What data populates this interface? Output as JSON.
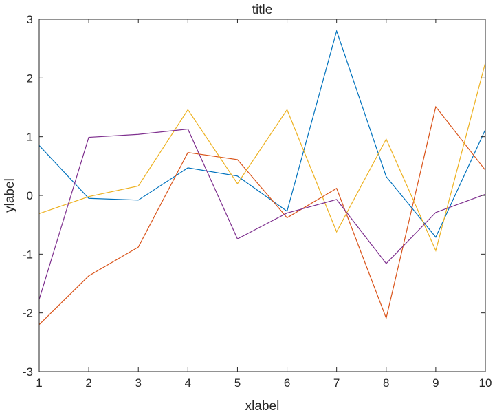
{
  "chart_data": {
    "type": "line",
    "title": "title",
    "xlabel": "xlabel",
    "ylabel": "ylabel",
    "xlim": [
      1,
      10
    ],
    "ylim": [
      -3,
      3
    ],
    "xticks": [
      1,
      2,
      3,
      4,
      5,
      6,
      7,
      8,
      9,
      10
    ],
    "yticks": [
      -3,
      -2,
      -1,
      0,
      1,
      2,
      3
    ],
    "grid": false,
    "x": [
      1,
      2,
      3,
      4,
      5,
      6,
      7,
      8,
      9,
      10
    ],
    "series": [
      {
        "color": "#0072bd",
        "values": [
          0.85,
          -0.05,
          -0.08,
          0.47,
          0.33,
          -0.27,
          2.8,
          0.32,
          -0.71,
          1.12
        ]
      },
      {
        "color": "#d95319",
        "values": [
          -2.2,
          -1.37,
          -0.88,
          0.73,
          0.61,
          -0.38,
          0.12,
          -2.09,
          1.51,
          0.43
        ]
      },
      {
        "color": "#edb120",
        "values": [
          -0.31,
          -0.02,
          0.16,
          1.46,
          0.2,
          1.46,
          -0.62,
          0.96,
          -0.94,
          2.26
        ]
      },
      {
        "color": "#7e2f8e",
        "values": [
          -1.77,
          0.99,
          1.04,
          1.13,
          -0.74,
          -0.3,
          -0.07,
          -1.16,
          -0.29,
          0.02
        ]
      }
    ]
  }
}
